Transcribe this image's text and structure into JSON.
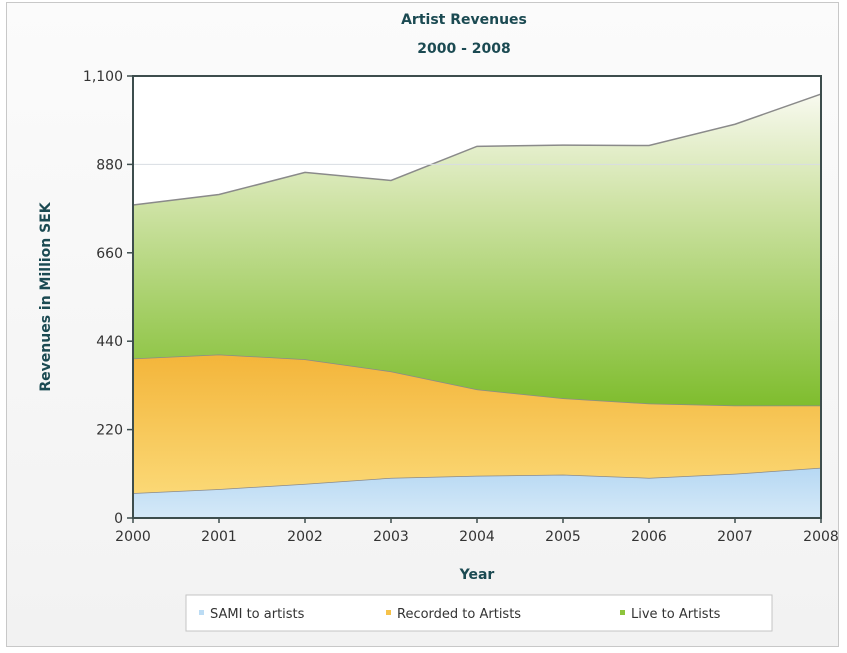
{
  "chart_data": {
    "type": "area",
    "stacked": true,
    "title": "Artist Revenues",
    "subtitle": "2000 - 2008",
    "xlabel": "Year",
    "ylabel": "Revenues in Million SEK",
    "ylim": [
      0,
      1100
    ],
    "yticks": [
      0,
      220,
      440,
      660,
      880,
      1100
    ],
    "ytick_labels": [
      "0",
      "220",
      "440",
      "660",
      "880",
      "1,100"
    ],
    "x": [
      "2000",
      "2001",
      "2002",
      "2003",
      "2004",
      "2005",
      "2006",
      "2007",
      "2008"
    ],
    "series": [
      {
        "name": "SAMI to artists",
        "color": "#bcdcf4",
        "values": [
          62,
          72,
          85,
          100,
          105,
          108,
          100,
          110,
          125
        ]
      },
      {
        "name": "Recorded to Artists",
        "color": "#f6c24a",
        "values": [
          335,
          335,
          310,
          265,
          215,
          190,
          185,
          170,
          155
        ]
      },
      {
        "name": "Live to Artists",
        "color": "#8dc43c",
        "values": [
          382,
          398,
          465,
          475,
          605,
          630,
          642,
          700,
          775
        ]
      }
    ],
    "legend_position": "bottom",
    "grid": false
  }
}
